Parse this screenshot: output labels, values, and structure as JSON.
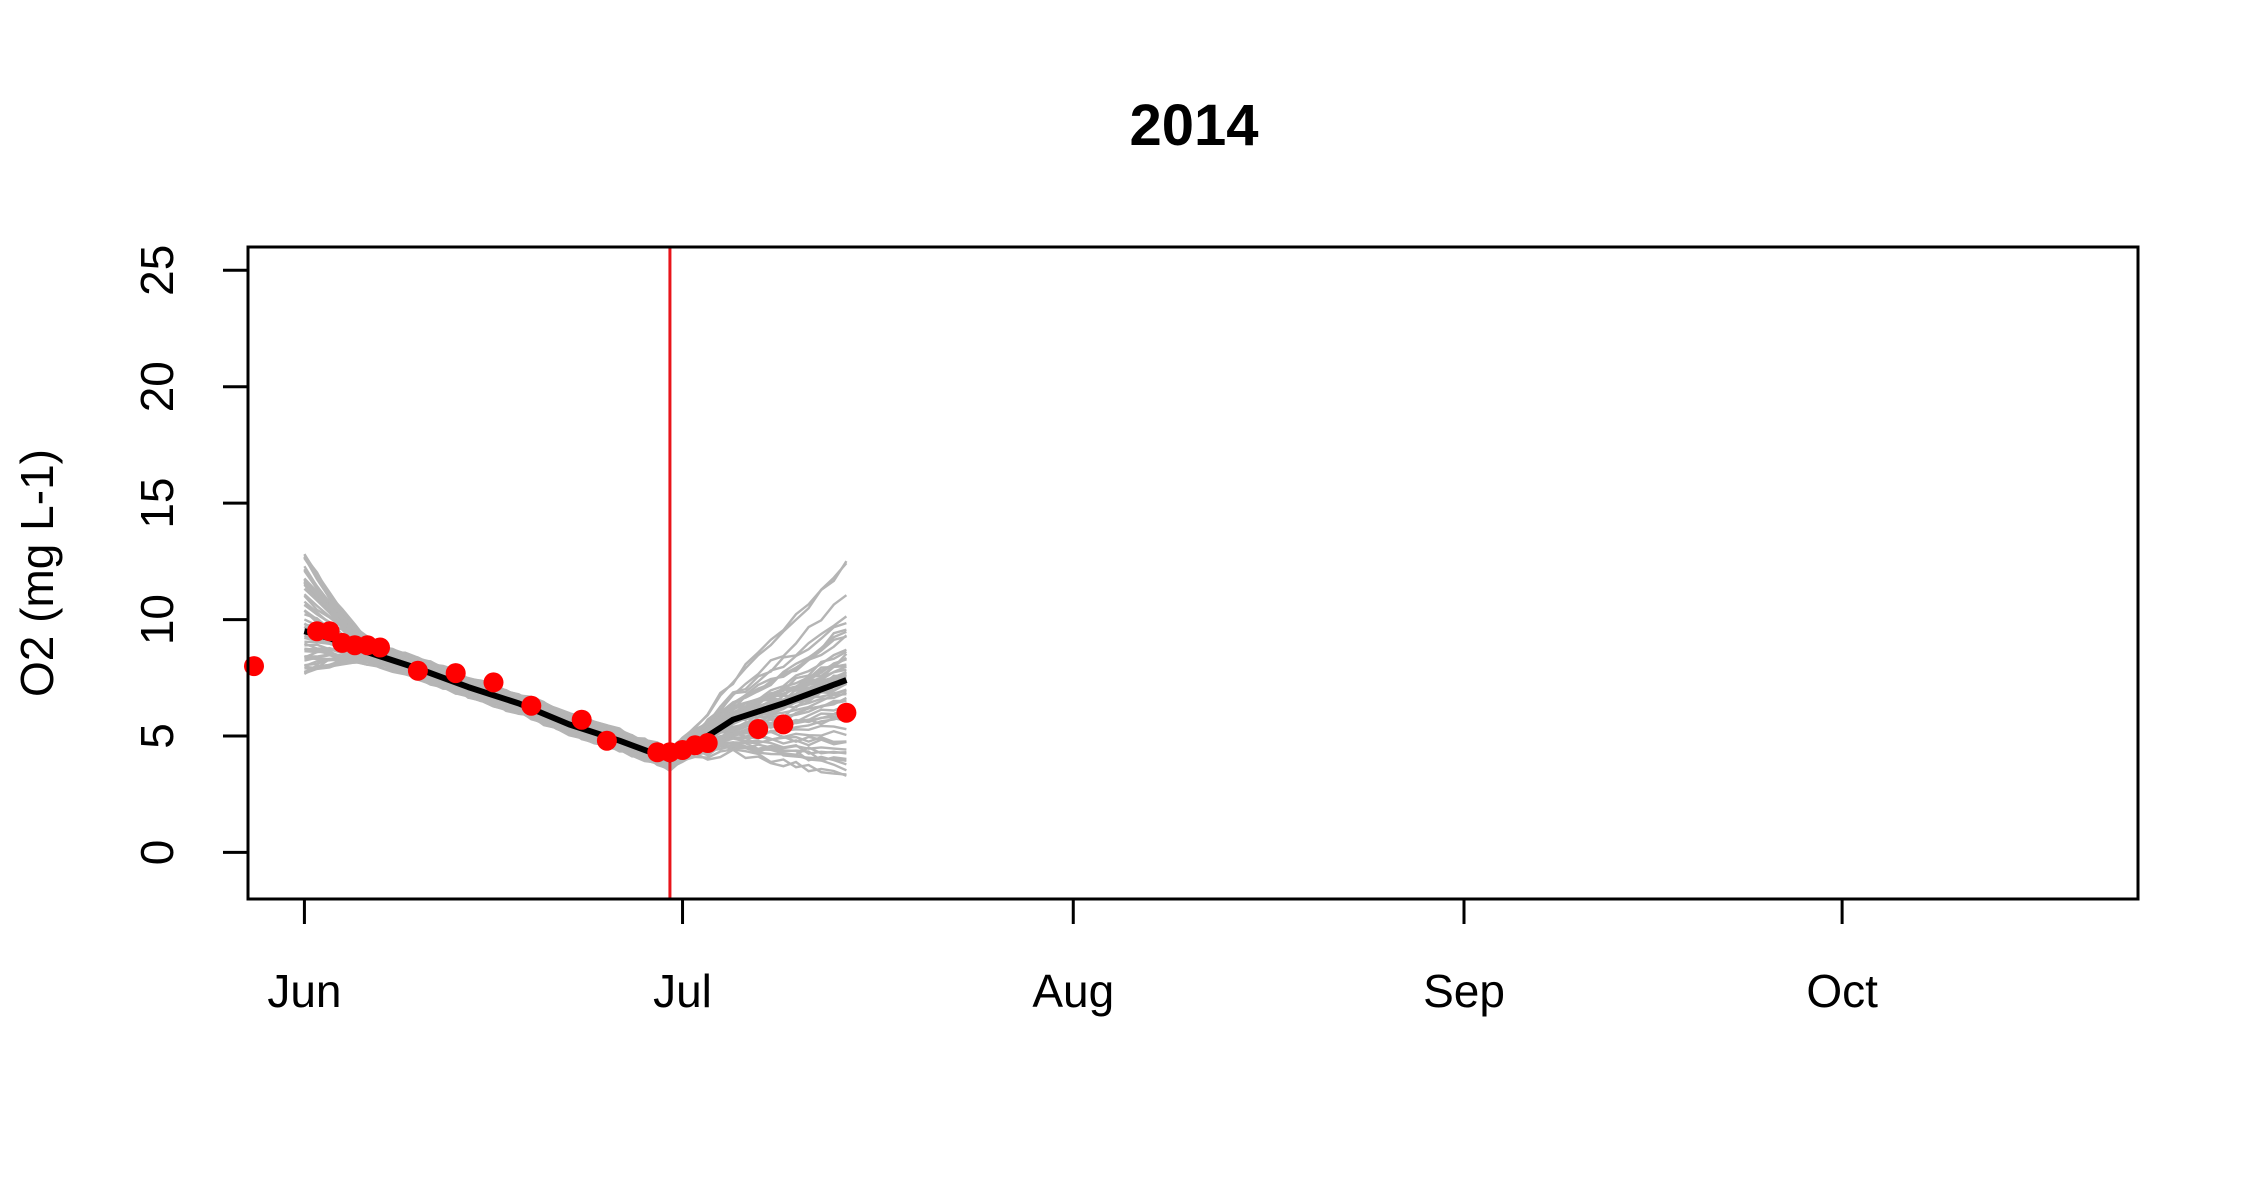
{
  "chart_data": {
    "type": "line",
    "title": "2014",
    "xlabel": "",
    "ylabel": "O2 (mg L-1)",
    "ylim": [
      -2,
      26
    ],
    "xlim": [
      "2014-05-28",
      "2014-10-24"
    ],
    "yticks": [
      0,
      5,
      10,
      15,
      20,
      25
    ],
    "xticks": [
      {
        "date": "2014-06-01",
        "label": "Jun"
      },
      {
        "date": "2014-07-01",
        "label": "Jul"
      },
      {
        "date": "2014-08-01",
        "label": "Aug"
      },
      {
        "date": "2014-09-01",
        "label": "Sep"
      },
      {
        "date": "2014-10-01",
        "label": "Oct"
      }
    ],
    "grid": false,
    "legend": "none",
    "vline": {
      "date": "2014-06-30",
      "color": "#e8141b"
    },
    "ensemble": {
      "color": "#b5b5b5",
      "count": 60,
      "start_date": "2014-06-01",
      "end_date": "2014-07-14",
      "start_spread": [
        7.3,
        13.1
      ],
      "end_spread": [
        2.9,
        12.4
      ]
    },
    "series": [
      {
        "color": "#000000",
        "points": [
          {
            "date": "2014-06-01",
            "value": 9.5
          },
          {
            "date": "2014-06-03",
            "value": 9.2
          },
          {
            "date": "2014-06-06",
            "value": 8.6
          },
          {
            "date": "2014-06-10",
            "value": 7.9
          },
          {
            "date": "2014-06-14",
            "value": 7.1
          },
          {
            "date": "2014-06-18",
            "value": 6.4
          },
          {
            "date": "2014-06-22",
            "value": 5.5
          },
          {
            "date": "2014-06-26",
            "value": 4.8
          },
          {
            "date": "2014-06-30",
            "value": 4.0
          },
          {
            "date": "2014-07-01",
            "value": 4.4
          },
          {
            "date": "2014-07-03",
            "value": 5.0
          },
          {
            "date": "2014-07-05",
            "value": 5.7
          },
          {
            "date": "2014-07-09",
            "value": 6.4
          },
          {
            "date": "2014-07-14",
            "value": 7.4
          }
        ]
      },
      {
        "color": "#ff0000",
        "points": [
          {
            "date": "2014-05-28",
            "value": 8.0
          },
          {
            "date": "2014-06-02",
            "value": 9.5
          },
          {
            "date": "2014-06-03",
            "value": 9.5
          },
          {
            "date": "2014-06-04",
            "value": 9.0
          },
          {
            "date": "2014-06-05",
            "value": 8.9
          },
          {
            "date": "2014-06-06",
            "value": 8.9
          },
          {
            "date": "2014-06-07",
            "value": 8.8
          },
          {
            "date": "2014-06-10",
            "value": 7.8
          },
          {
            "date": "2014-06-13",
            "value": 7.7
          },
          {
            "date": "2014-06-16",
            "value": 7.3
          },
          {
            "date": "2014-06-19",
            "value": 6.3
          },
          {
            "date": "2014-06-23",
            "value": 5.7
          },
          {
            "date": "2014-06-25",
            "value": 4.8
          },
          {
            "date": "2014-06-29",
            "value": 4.3
          },
          {
            "date": "2014-06-30",
            "value": 4.3
          },
          {
            "date": "2014-07-01",
            "value": 4.4
          },
          {
            "date": "2014-07-02",
            "value": 4.6
          },
          {
            "date": "2014-07-03",
            "value": 4.7
          },
          {
            "date": "2014-07-07",
            "value": 5.3
          },
          {
            "date": "2014-07-09",
            "value": 5.5
          },
          {
            "date": "2014-07-14",
            "value": 6.0
          }
        ]
      }
    ]
  }
}
